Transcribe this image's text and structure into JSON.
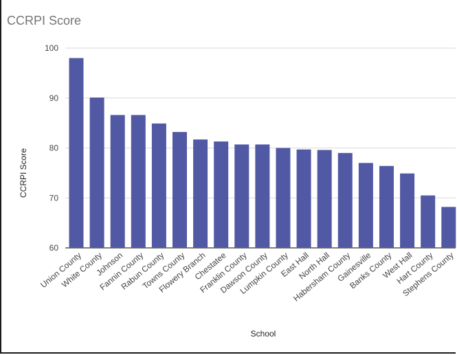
{
  "chart_data": {
    "type": "bar",
    "title": "CCRPI Score",
    "xlabel": "School",
    "ylabel": "CCRPI Score",
    "ylim": [
      60,
      100
    ],
    "yticks": [
      60,
      70,
      80,
      90,
      100
    ],
    "grid": true,
    "legend": "none",
    "bar_color": "#5159a5",
    "categories": [
      "Union County",
      "White County",
      "Johnson",
      "Fannin County",
      "Rabun County",
      "Towns County",
      "Flowery Branch",
      "Chestatee",
      "Franklin County",
      "Dawson County",
      "Lumpkin County",
      "East Hall",
      "North Hall",
      "Habersham County",
      "Gainesville",
      "Banks County",
      "West Hall",
      "Hart County",
      "Stephens County"
    ],
    "values": [
      98.0,
      90.1,
      86.6,
      86.6,
      84.9,
      83.2,
      81.7,
      81.3,
      80.7,
      80.7,
      80.0,
      79.7,
      79.6,
      79.0,
      77.0,
      76.4,
      74.9,
      70.5,
      68.2
    ]
  }
}
